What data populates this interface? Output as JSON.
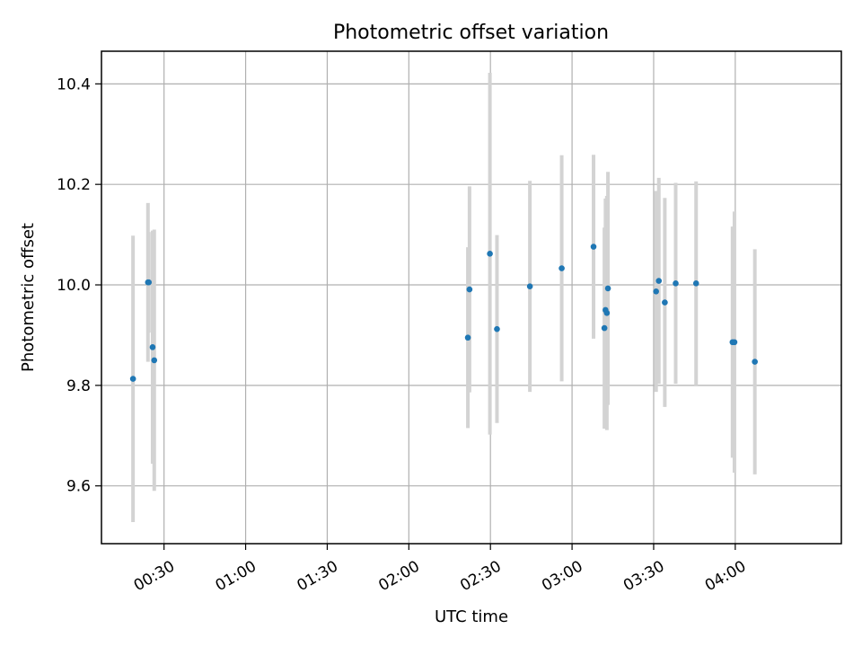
{
  "chart_data": {
    "type": "scatter",
    "title": "Photometric offset variation",
    "xlabel": "UTC time",
    "ylabel": "Photometric offset",
    "x_axis_unit": "UTC time (HH:MM)",
    "xlim": [
      "00:07",
      "04:39"
    ],
    "ylim": [
      9.485,
      10.465
    ],
    "xticks": [
      "00:30",
      "01:00",
      "01:30",
      "02:00",
      "02:30",
      "03:00",
      "03:30",
      "04:00"
    ],
    "yticks": [
      "9.6",
      "9.8",
      "10.0",
      "10.2",
      "10.4"
    ],
    "yticks_values": [
      9.6,
      9.8,
      10.0,
      10.2,
      10.4
    ],
    "grid": true,
    "point_color": "#1f77b4",
    "errorbar_color": "#d3d3d3",
    "points": [
      {
        "t": "00:18:36",
        "y": 9.813,
        "err": 0.285
      },
      {
        "t": "00:24:06",
        "y": 10.005,
        "err": 0.158
      },
      {
        "t": "00:24:24",
        "y": 10.005,
        "err": 0.1
      },
      {
        "t": "00:25:48",
        "y": 9.876,
        "err": 0.232
      },
      {
        "t": "00:26:24",
        "y": 9.85,
        "err": 0.26
      },
      {
        "t": "02:21:42",
        "y": 9.895,
        "err": 0.18
      },
      {
        "t": "02:22:18",
        "y": 9.991,
        "err": 0.205
      },
      {
        "t": "02:29:48",
        "y": 10.062,
        "err": 0.36
      },
      {
        "t": "02:32:24",
        "y": 9.912,
        "err": 0.187
      },
      {
        "t": "02:44:30",
        "y": 9.997,
        "err": 0.21
      },
      {
        "t": "02:56:12",
        "y": 10.033,
        "err": 0.225
      },
      {
        "t": "03:07:54",
        "y": 10.076,
        "err": 0.183
      },
      {
        "t": "03:11:54",
        "y": 9.914,
        "err": 0.2
      },
      {
        "t": "03:12:18",
        "y": 9.95,
        "err": 0.222
      },
      {
        "t": "03:12:48",
        "y": 9.944,
        "err": 0.233
      },
      {
        "t": "03:13:12",
        "y": 9.993,
        "err": 0.232
      },
      {
        "t": "03:30:54",
        "y": 9.987,
        "err": 0.2
      },
      {
        "t": "03:31:54",
        "y": 10.008,
        "err": 0.205
      },
      {
        "t": "03:34:06",
        "y": 9.965,
        "err": 0.208
      },
      {
        "t": "03:38:06",
        "y": 10.003,
        "err": 0.2
      },
      {
        "t": "03:45:36",
        "y": 10.003,
        "err": 0.203
      },
      {
        "t": "03:59:00",
        "y": 9.886,
        "err": 0.23
      },
      {
        "t": "03:59:42",
        "y": 9.886,
        "err": 0.26
      },
      {
        "t": "04:07:12",
        "y": 9.847,
        "err": 0.224
      }
    ]
  }
}
